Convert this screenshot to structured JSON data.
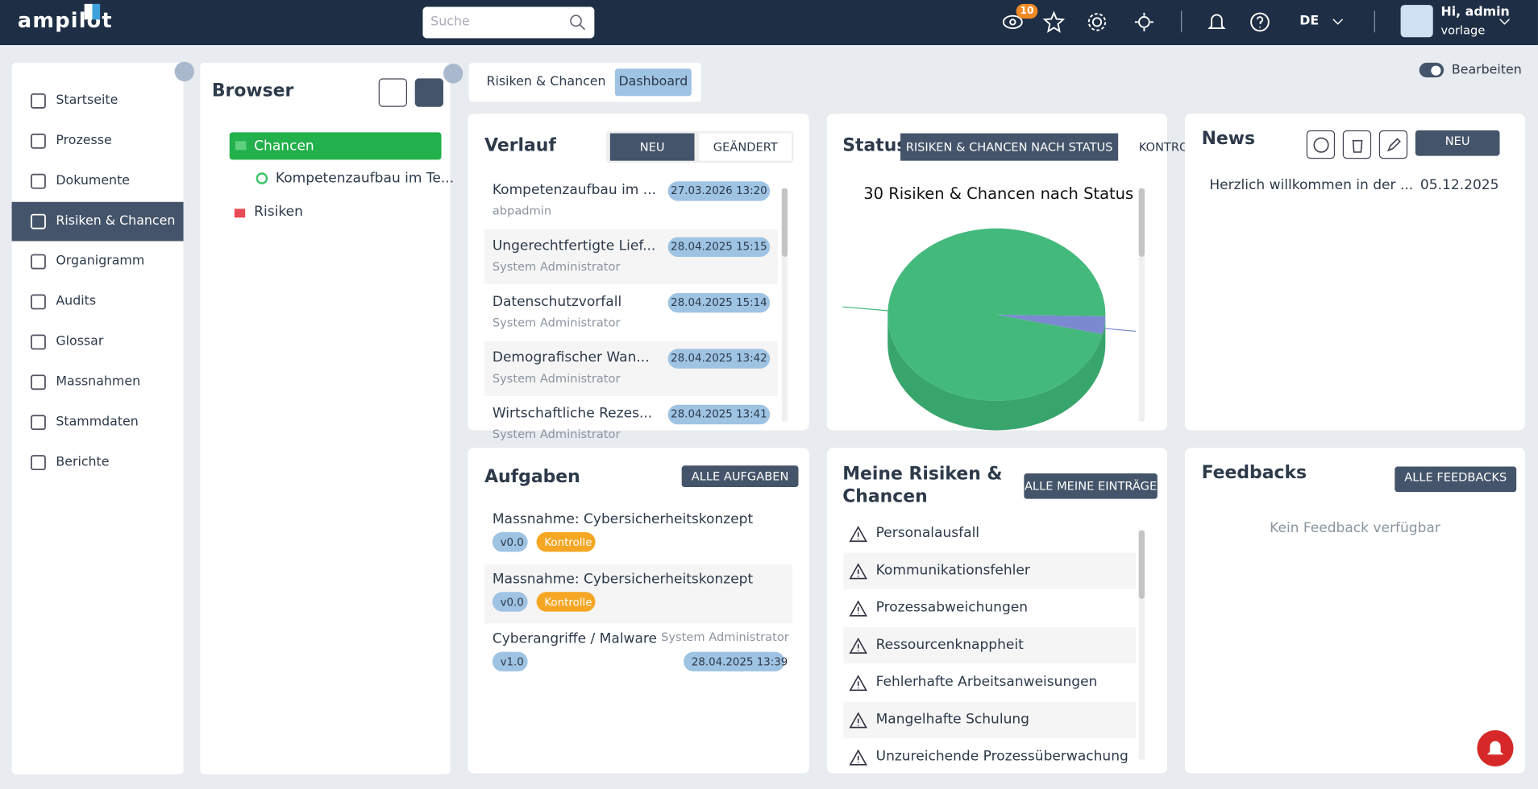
{
  "header": {
    "logo": "ampilot",
    "search_placeholder": "Suche",
    "watch_badge": "10",
    "language": "DE",
    "greeting": "Hi, admin",
    "user_sub": "vorlage"
  },
  "nav": {
    "items": [
      "Startseite",
      "Prozesse",
      "Dokumente",
      "Risiken & Chancen",
      "Organigramm",
      "Audits",
      "Glossar",
      "Massnahmen",
      "Stammdaten",
      "Berichte"
    ],
    "active": 3
  },
  "browser": {
    "title": "Browser",
    "tree": [
      {
        "label": "Chancen",
        "children": [
          "Kompetenzaufbau im Te..."
        ]
      },
      {
        "label": "Risiken"
      }
    ]
  },
  "breadcrumb": [
    "Risiken & Chancen",
    "Dashboard"
  ],
  "edit_toggle": "Bearbeiten",
  "verlauf": {
    "title": "Verlauf",
    "tabs": [
      "NEU",
      "GEÄNDERT"
    ],
    "items": [
      {
        "title": "Kompetenzaufbau im ...",
        "user": "abpadmin",
        "date": "27.03.2026 13:20"
      },
      {
        "title": "Ungerechtfertigte Lief...",
        "user": "System Administrator",
        "date": "28.04.2025 15:15"
      },
      {
        "title": "Datenschutzvorfall",
        "user": "System Administrator",
        "date": "28.04.2025 15:14"
      },
      {
        "title": "Demografischer Wan...",
        "user": "System Administrator",
        "date": "28.04.2025 13:42"
      },
      {
        "title": "Wirtschaftliche Rezes...",
        "user": "System Administrator",
        "date": "28.04.2025 13:41"
      }
    ]
  },
  "status": {
    "title": "Status",
    "tabs": [
      "RISIKEN & CHANCEN NACH STATUS",
      "KONTRO"
    ],
    "chart_data": {
      "type": "pie",
      "title": "30 Risiken & Chancen nach Status",
      "values": [
        29,
        1
      ],
      "colors": [
        "#44b97c",
        "#7b8ad0"
      ]
    }
  },
  "news": {
    "title": "News",
    "button": "NEU",
    "items": [
      {
        "text": "Herzlich willkommen in der ...",
        "date": "05.12.2025"
      }
    ]
  },
  "aufgaben": {
    "title": "Aufgaben",
    "button": "ALLE AUFGABEN",
    "items": [
      {
        "title": "Massnahme: Cybersicherheitskonzept",
        "version": "v0.0",
        "tag": "Kontrolle"
      },
      {
        "title": "Massnahme: Cybersicherheitskonzept",
        "version": "v0.0",
        "tag": "Kontrolle"
      },
      {
        "title": "Cyberangriffe / Malware",
        "version": "v1.0",
        "user": "System Administrator",
        "date": "28.04.2025 13:39"
      }
    ]
  },
  "meine": {
    "title": "Meine Risiken & Chancen",
    "button": "ALLE MEINE EINTRÄGE",
    "items": [
      "Personalausfall",
      "Kommunikationsfehler",
      "Prozessabweichungen",
      "Ressourcenknappheit",
      "Fehlerhafte Arbeitsanweisungen",
      "Mangelhafte Schulung",
      "Unzureichende Prozessüberwachung"
    ]
  },
  "feedbacks": {
    "title": "Feedbacks",
    "button": "ALLE FEEDBACKS",
    "empty": "Kein Feedback verfügbar"
  }
}
